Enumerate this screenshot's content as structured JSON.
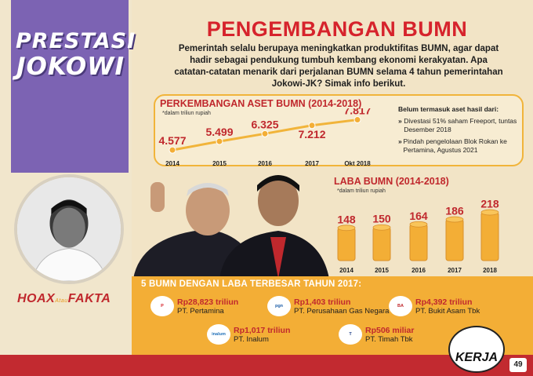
{
  "sidebar": {
    "title_line1": "PRESTASI",
    "title_line2": "JOKOWI",
    "hoax": "HOAX",
    "atau": "Atau",
    "fakta": "FAKTA"
  },
  "header": {
    "title": "PENGEMBANGAN BUMN",
    "intro": "Pemerintah selalu berupaya meningkatkan produktifitas BUMN, agar dapat hadir sebagai pendukung tumbuh kembang ekonomi kerakyatan. Apa catatan-catatan menarik dari perjalanan BUMN selama 4 tahun pemerintahan Jokowi-JK? Simak info berikut."
  },
  "asset": {
    "title": "PERKEMBANGAN ASET BUMN (2014-2018)",
    "unit": "*dalam triliun rupiah",
    "note_header": "Belum termasuk aset hasil dari:",
    "notes": [
      "Divestasi 51% saham Freeport, tuntas Desember 2018",
      "Pindah pengelolaan Blok Rokan ke Pertamina, Agustus 2021"
    ]
  },
  "laba": {
    "title": "LABA BUMN (2014-2018)",
    "unit": "*dalam triliun rupiah"
  },
  "chart_data": [
    {
      "type": "line",
      "title": "PERKEMBANGAN ASET BUMN (2014-2018)",
      "categories": [
        "2014",
        "2015",
        "2016",
        "2017",
        "Okt 2018"
      ],
      "value_labels": [
        "4.577",
        "5.499",
        "6.325",
        "7.212",
        "7.817"
      ],
      "values": [
        4577,
        5499,
        6325,
        7212,
        7817
      ]
    },
    {
      "type": "bar",
      "title": "LABA BUMN (2014-2018)",
      "categories": [
        "2014",
        "2015",
        "2016",
        "2017",
        "2018"
      ],
      "values": [
        148,
        150,
        164,
        186,
        218
      ]
    }
  ],
  "companies": {
    "title": "5 BUMN DENGAN LABA TERBESAR TAHUN 2017:",
    "items": [
      {
        "amount": "Rp28,823 triliun",
        "name": "PT. Pertamina",
        "logo": "PERTAMINA"
      },
      {
        "amount": "Rp1,403 triliun",
        "name": "PT. Perusahaan Gas Negara",
        "logo": "pgn"
      },
      {
        "amount": "Rp4,392 triliun",
        "name": "PT. Bukit Asam Tbk",
        "logo": "BUKIT ASAM"
      },
      {
        "amount": "Rp1,017 triliun",
        "name": "PT. Inalum",
        "logo": "inalum"
      },
      {
        "amount": "Rp506 miliar",
        "name": "PT. Timah Tbk",
        "logo": "TIMAH"
      }
    ]
  },
  "footer": {
    "page": "49",
    "logo_text": "KERJA"
  },
  "colors": {
    "accent_red": "#c0282d",
    "accent_orange": "#f3ae36",
    "purple": "#7c63b3"
  }
}
